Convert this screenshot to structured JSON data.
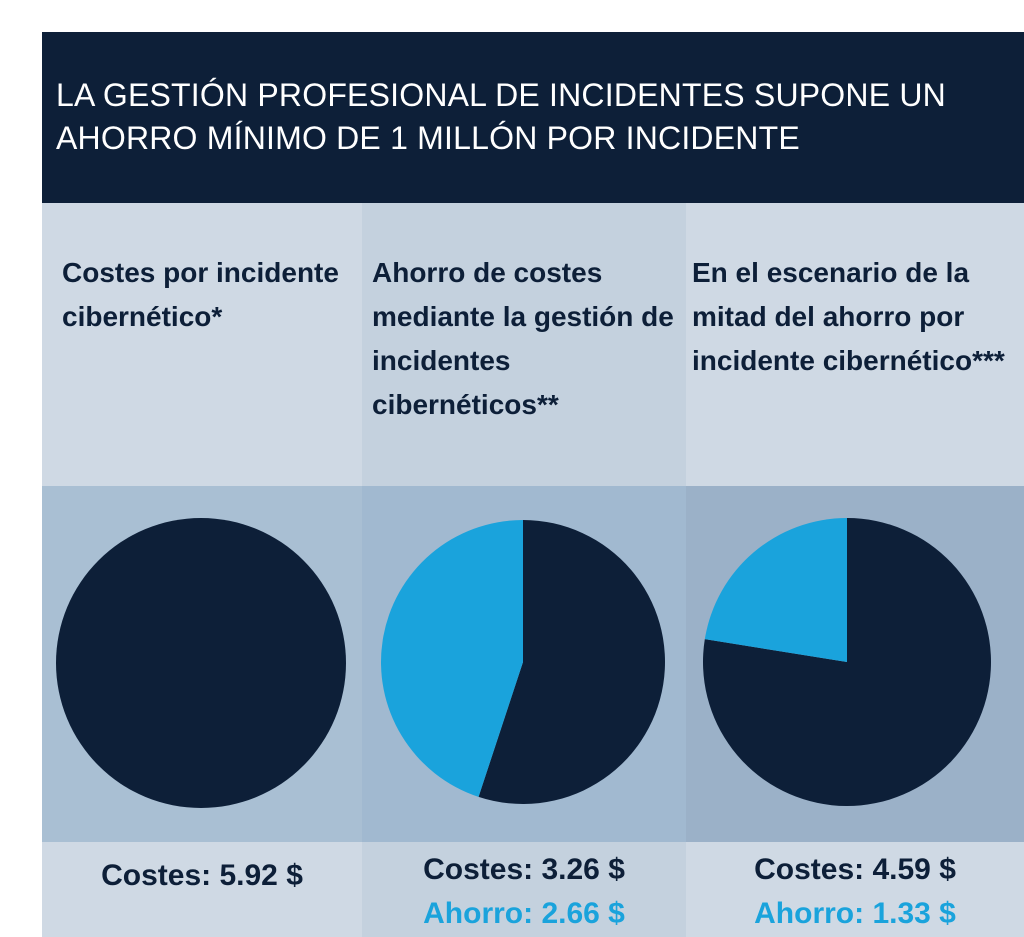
{
  "header": {
    "title": "LA GESTIÓN PROFESIONAL DE INCIDENTES SUPONE UN AHORRO MÍNIMO DE 1 MILLÓN POR INCIDENTE"
  },
  "colors": {
    "header_bg": "#0d1f38",
    "costs": "#0d1f38",
    "savings": "#1aa3dc",
    "col_head_light": "#cfd9e4",
    "col_head_dark": "#b4c3d3",
    "col_chart_light": "#a9bfd3",
    "col_chart_dark": "#93a9c1",
    "col_foot_light": "#cfd9e4",
    "col_foot_dark": "#b4c3d3"
  },
  "columns": [
    {
      "heading": "Costes por incidente cibernético*",
      "costs_label": "Costes: 5.92 $",
      "savings_label": ""
    },
    {
      "heading": "Ahorro de costes mediante la gestión de incidentes cibernéticos**",
      "costs_label": "Costes: 3.26 $",
      "savings_label": "Ahorro: 2.66 $"
    },
    {
      "heading": "En el escenario de la mitad del ahorro por incidente cibernético***",
      "costs_label": "Costes: 4.59 $",
      "savings_label": "Ahorro: 1.33 $"
    }
  ],
  "chart_data": [
    {
      "type": "pie",
      "labels": [
        "Costes"
      ],
      "values": [
        5.92
      ]
    },
    {
      "type": "pie",
      "labels": [
        "Costes",
        "Ahorro"
      ],
      "values": [
        3.26,
        2.66
      ]
    },
    {
      "type": "pie",
      "labels": [
        "Costes",
        "Ahorro"
      ],
      "values": [
        4.59,
        1.33
      ]
    }
  ]
}
